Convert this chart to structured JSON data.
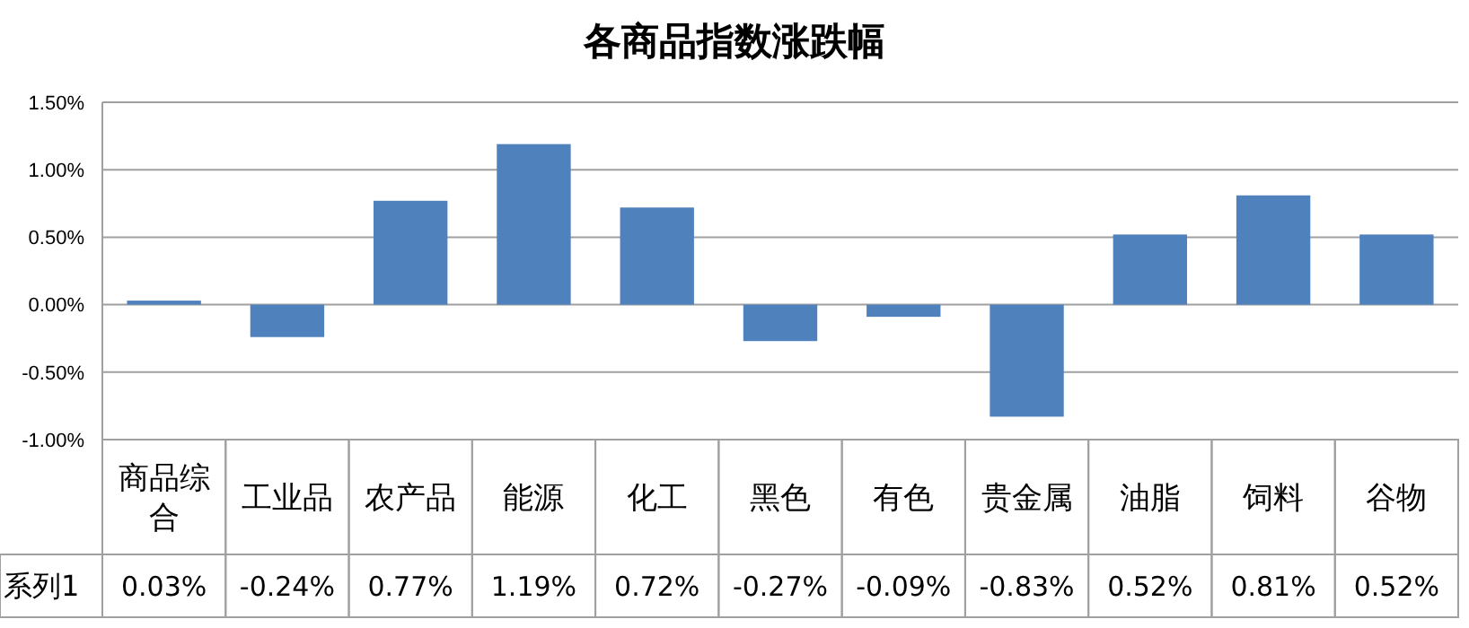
{
  "chart_data": {
    "type": "bar",
    "title": "各商品指数涨跌幅",
    "categories": [
      "商品综合",
      "工业品",
      "农产品",
      "能源",
      "化工",
      "黑色",
      "有色",
      "贵金属",
      "油脂",
      "饲料",
      "谷物"
    ],
    "series": [
      {
        "name": "系列1",
        "color": "#4f81bd",
        "values": [
          0.03,
          -0.24,
          0.77,
          1.19,
          0.72,
          -0.27,
          -0.09,
          -0.83,
          0.52,
          0.81,
          0.52
        ],
        "value_labels": [
          "0.03%",
          "-0.24%",
          "0.77%",
          "1.19%",
          "0.72%",
          "-0.27%",
          "-0.09%",
          "-0.83%",
          "0.52%",
          "0.81%",
          "0.52%"
        ]
      }
    ],
    "ylim": [
      -1,
      1.5
    ],
    "yticks": [
      {
        "value": -1,
        "label": "-1.00%"
      },
      {
        "value": -0.5,
        "label": "-0.50%"
      },
      {
        "value": 0,
        "label": "0.00%"
      },
      {
        "value": 0.5,
        "label": "0.50%"
      },
      {
        "value": 1,
        "label": "1.00%"
      },
      {
        "value": 1.5,
        "label": "1.50%"
      }
    ],
    "grid": "y"
  }
}
